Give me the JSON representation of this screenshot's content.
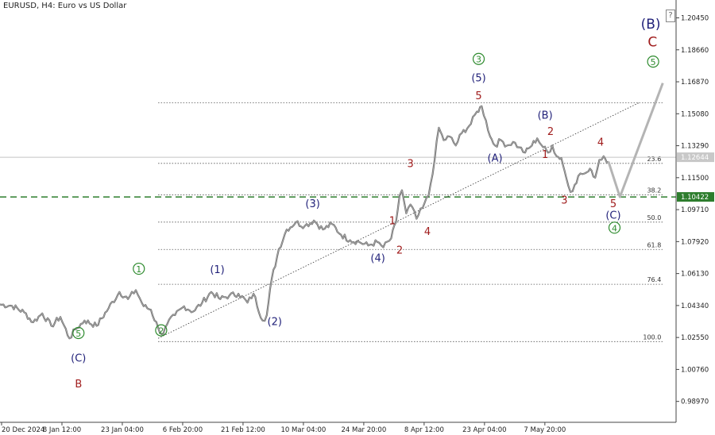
{
  "header": {
    "title": "EURUSD, H4:  Euro vs US Dollar",
    "help_glyph": "?"
  },
  "colors": {
    "price": "#8a8a8a",
    "navy": "#22227a",
    "red": "#a01c1c",
    "green": "#2e8b2e",
    "projection": "#b4b4b4",
    "support": "#2d7d2d",
    "grid": "#555555",
    "axis": "#444444",
    "current_box": "#c8c8c8"
  },
  "chart_data": {
    "type": "line",
    "title": "EURUSD, H4:  Euro vs US Dollar",
    "xlabel": "",
    "ylabel": "",
    "ylim": [
      0.978,
      1.2145
    ],
    "x_ticks": [
      {
        "label": "20 Dec 2024",
        "i": 0
      },
      {
        "label": "8 Jan 12:00",
        "i": 100
      },
      {
        "label": "23 Jan 04:00",
        "i": 200
      },
      {
        "label": "6 Feb 20:00",
        "i": 300
      },
      {
        "label": "21 Feb 12:00",
        "i": 400
      },
      {
        "label": "10 Mar 04:00",
        "i": 500
      },
      {
        "label": "24 Mar 20:00",
        "i": 600
      },
      {
        "label": "8 Apr 12:00",
        "i": 700
      },
      {
        "label": "23 Apr 04:00",
        "i": 800
      },
      {
        "label": "7 May 20:00",
        "i": 900
      }
    ],
    "y_ticks": [
      "1.20450",
      "1.18660",
      "1.16870",
      "1.15080",
      "1.13290",
      "1.11500",
      "1.09710",
      "1.07920",
      "1.06130",
      "1.04340",
      "1.02550",
      "1.00760",
      "0.98970"
    ],
    "current_price": "1.12644",
    "support_level": "1.10422",
    "series": [
      {
        "values": [
          [
            0,
            1.044
          ],
          [
            20,
            1.0432
          ],
          [
            40,
            1.0396
          ],
          [
            55,
            1.034
          ],
          [
            70,
            1.039
          ],
          [
            85,
            1.032
          ],
          [
            100,
            1.037
          ],
          [
            115,
            1.025
          ],
          [
            125,
            1.03
          ],
          [
            140,
            1.035
          ],
          [
            160,
            1.032
          ],
          [
            180,
            1.042
          ],
          [
            198,
            1.051
          ],
          [
            212,
            1.047
          ],
          [
            225,
            1.052
          ],
          [
            238,
            1.043
          ],
          [
            250,
            1.041
          ],
          [
            262,
            1.0308
          ],
          [
            270,
            1.027
          ],
          [
            277,
            1.033
          ],
          [
            290,
            1.038
          ],
          [
            305,
            1.043
          ],
          [
            320,
            1.04
          ],
          [
            335,
            1.045
          ],
          [
            350,
            1.051
          ],
          [
            365,
            1.047
          ],
          [
            380,
            1.049
          ],
          [
            395,
            1.05
          ],
          [
            410,
            1.045
          ],
          [
            420,
            1.05
          ],
          [
            435,
            1.035
          ],
          [
            442,
            1.038
          ],
          [
            450,
            1.058
          ],
          [
            462,
            1.075
          ],
          [
            475,
            1.086
          ],
          [
            490,
            1.09
          ],
          [
            505,
            1.088
          ],
          [
            520,
            1.091
          ],
          [
            535,
            1.086
          ],
          [
            550,
            1.089
          ],
          [
            565,
            1.083
          ],
          [
            580,
            1.08
          ],
          [
            595,
            1.079
          ],
          [
            610,
            1.077
          ],
          [
            625,
            1.079
          ],
          [
            635,
            1.076
          ],
          [
            648,
            1.081
          ],
          [
            656,
            1.09
          ],
          [
            662,
            1.105
          ],
          [
            666,
            1.108
          ],
          [
            673,
            1.095
          ],
          [
            680,
            1.1
          ],
          [
            690,
            1.092
          ],
          [
            700,
            1.098
          ],
          [
            710,
            1.105
          ],
          [
            720,
            1.125
          ],
          [
            727,
            1.143
          ],
          [
            735,
            1.136
          ],
          [
            745,
            1.138
          ],
          [
            755,
            1.133
          ],
          [
            765,
            1.14
          ],
          [
            780,
            1.145
          ],
          [
            790,
            1.152
          ],
          [
            798,
            1.155
          ],
          [
            805,
            1.147
          ],
          [
            812,
            1.138
          ],
          [
            820,
            1.133
          ],
          [
            830,
            1.136
          ],
          [
            840,
            1.133
          ],
          [
            850,
            1.135
          ],
          [
            860,
            1.132
          ],
          [
            870,
            1.129
          ],
          [
            878,
            1.132
          ],
          [
            890,
            1.137
          ],
          [
            900,
            1.132
          ],
          [
            908,
            1.129
          ],
          [
            915,
            1.133
          ],
          [
            922,
            1.127
          ],
          [
            930,
            1.126
          ],
          [
            938,
            1.115
          ],
          [
            945,
            1.107
          ],
          [
            952,
            1.111
          ],
          [
            958,
            1.116
          ],
          [
            965,
            1.117
          ],
          [
            972,
            1.118
          ],
          [
            980,
            1.119
          ],
          [
            986,
            1.115
          ],
          [
            993,
            1.125
          ],
          [
            1000,
            1.127
          ],
          [
            1008,
            1.124
          ]
        ]
      }
    ],
    "projection": [
      [
        1008,
        1.124
      ],
      [
        1027,
        1.1042
      ],
      [
        1098,
        1.168
      ]
    ],
    "fib_levels": [
      {
        "label": "23.6",
        "value": 1.123
      },
      {
        "label": "38.2",
        "value": 1.1054
      },
      {
        "label": "50.0",
        "value": 1.0901
      },
      {
        "label": "61.8",
        "value": 1.0748
      },
      {
        "label": "76.4",
        "value": 1.0553
      },
      {
        "label": "100.0",
        "value": 1.0232
      },
      {
        "label": "",
        "value": 1.157
      }
    ],
    "trendline": [
      [
        262,
        1.025
      ],
      [
        1060,
        1.1572
      ]
    ],
    "wave_labels": [
      {
        "text": "5",
        "circled": true,
        "color": "green",
        "i": 130,
        "y": 1.026
      },
      {
        "text": "(C)",
        "color": "navy",
        "i": 130,
        "y": 1.012
      },
      {
        "text": "B",
        "color": "red",
        "i": 130,
        "y": 0.9975
      },
      {
        "text": "1",
        "circled": true,
        "color": "green",
        "i": 230,
        "y": 1.062
      },
      {
        "text": "2",
        "circled": true,
        "color": "green",
        "i": 267,
        "y": 1.0275
      },
      {
        "text": "(1)",
        "color": "navy",
        "i": 360,
        "y": 1.0615
      },
      {
        "text": "(2)",
        "color": "navy",
        "i": 455,
        "y": 1.0325
      },
      {
        "text": "(3)",
        "color": "navy",
        "i": 518,
        "y": 1.0985
      },
      {
        "text": "(4)",
        "color": "navy",
        "i": 626,
        "y": 1.068
      },
      {
        "text": "1",
        "color": "red",
        "i": 650,
        "y": 1.089
      },
      {
        "text": "2",
        "color": "red",
        "i": 662,
        "y": 1.0725
      },
      {
        "text": "3",
        "color": "red",
        "i": 680,
        "y": 1.121
      },
      {
        "text": "4",
        "color": "red",
        "i": 708,
        "y": 1.083
      },
      {
        "text": "3",
        "circled": true,
        "color": "green",
        "i": 793,
        "y": 1.1795
      },
      {
        "text": "(5)",
        "color": "navy",
        "i": 793,
        "y": 1.169
      },
      {
        "text": "5",
        "color": "red",
        "i": 793,
        "y": 1.159
      },
      {
        "text": "(A)",
        "color": "navy",
        "i": 820,
        "y": 1.124
      },
      {
        "text": "(B)",
        "color": "navy",
        "i": 903,
        "y": 1.148
      },
      {
        "text": "2",
        "color": "red",
        "i": 912,
        "y": 1.139
      },
      {
        "text": "1",
        "color": "red",
        "i": 903,
        "y": 1.126
      },
      {
        "text": "4",
        "color": "red",
        "i": 995,
        "y": 1.133
      },
      {
        "text": "3",
        "color": "red",
        "i": 935,
        "y": 1.1005
      },
      {
        "text": "5",
        "color": "red",
        "i": 1016,
        "y": 1.0985
      },
      {
        "text": "(C)",
        "color": "navy",
        "i": 1016,
        "y": 1.092
      },
      {
        "text": "4",
        "circled": true,
        "color": "green",
        "i": 1018,
        "y": 1.085
      },
      {
        "text": "(B)",
        "color": "navy",
        "i": 1078,
        "y": 1.1985
      },
      {
        "text": "C",
        "color": "red",
        "i": 1081,
        "y": 1.1885
      },
      {
        "text": "5",
        "circled": true,
        "color": "green",
        "i": 1082,
        "y": 1.178
      }
    ]
  }
}
